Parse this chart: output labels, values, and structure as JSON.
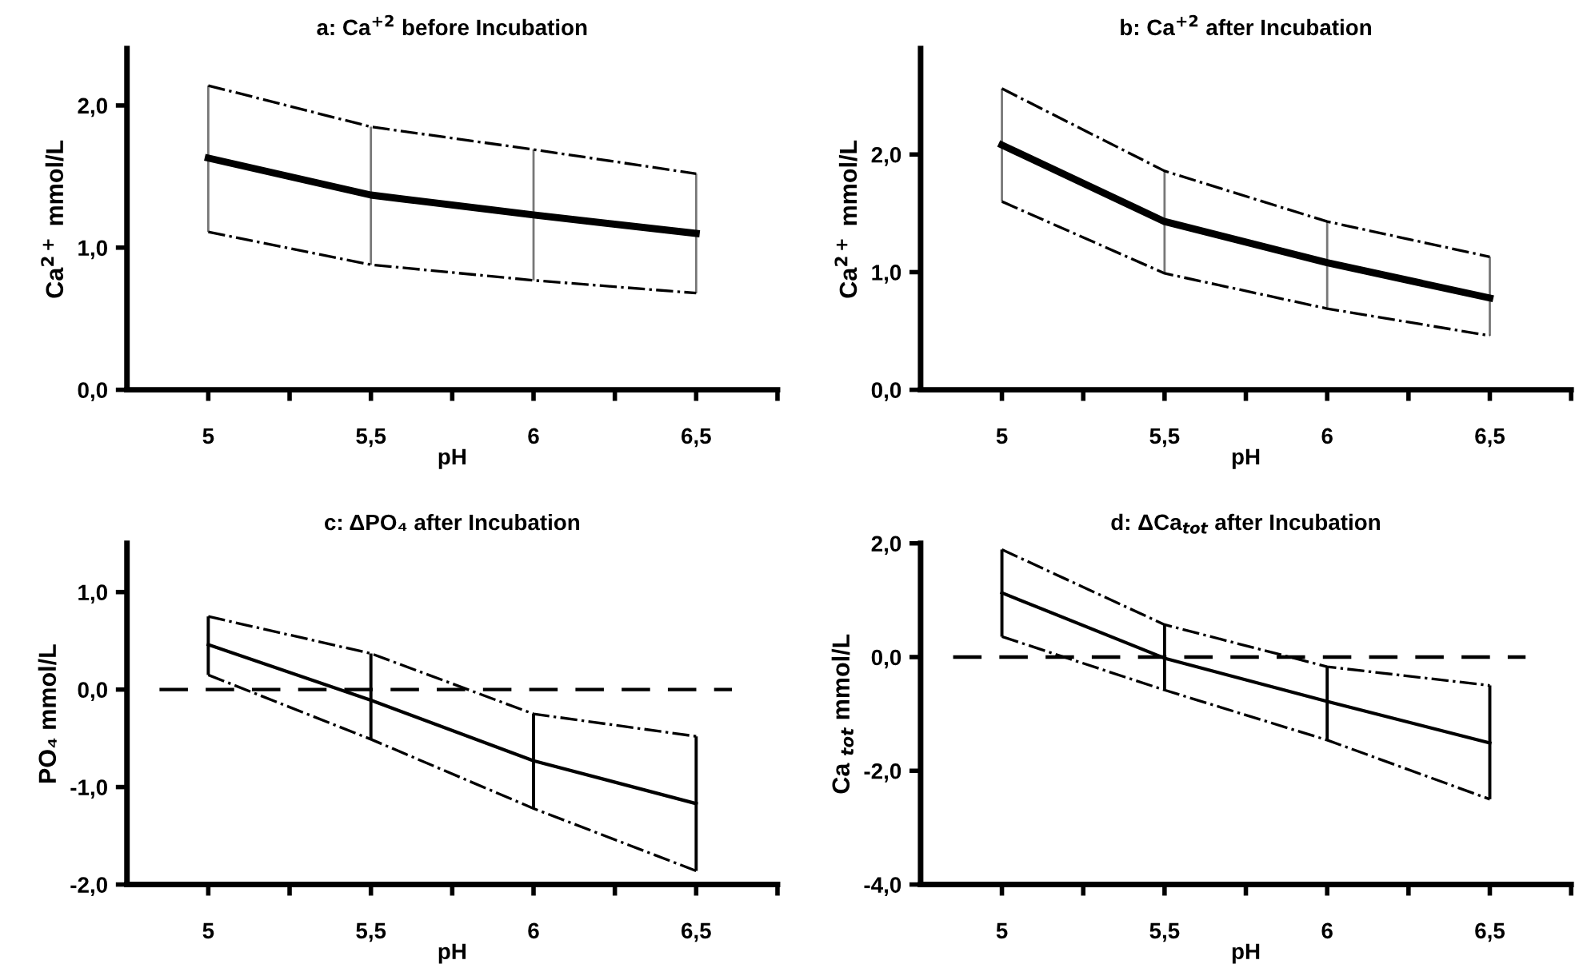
{
  "chart_data": [
    {
      "type": "line",
      "title": "a: Ca$^{+2}$ before Incubation",
      "xlabel": "pH",
      "ylabel": "Ca$^{2+}$ mmol/L",
      "x": [
        5,
        5.5,
        6,
        6.5
      ],
      "series": [
        {
          "color": "#000000",
          "values": [
            1.63,
            1.37,
            1.23,
            1.1
          ],
          "errors": [
            [
              1.11,
              2.14
            ],
            [
              0.88,
              1.85
            ],
            [
              0.77,
              1.69
            ],
            [
              0.68,
              1.52
            ]
          ]
        },
        {
          "color": "#000000",
          "values": [
            2.14,
            1.85,
            1.69,
            1.52
          ],
          "line_style": "dashdot"
        },
        {
          "color": "#000000",
          "values": [
            1.11,
            0.88,
            0.77,
            0.68
          ],
          "line_style": "dashdot"
        }
      ],
      "xlim": [
        4.75,
        6.75
      ],
      "xticks": [
        {
          "value": 5,
          "label": "5"
        },
        {
          "value": 5.25,
          "label": null
        },
        {
          "value": 5.5,
          "label": "5,5"
        },
        {
          "value": 5.75,
          "label": null
        },
        {
          "value": 6,
          "label": "6"
        },
        {
          "value": 6.25,
          "label": null
        },
        {
          "value": 6.5,
          "label": "6,5"
        },
        {
          "value": 6.75,
          "label": null
        }
      ],
      "ylim": [
        0,
        2.4
      ],
      "yticks": [
        {
          "value": 0,
          "label": "0,0"
        },
        {
          "value": 1,
          "label": "1,0"
        },
        {
          "value": 2,
          "label": "2,0"
        }
      ],
      "grid": false,
      "legend": false,
      "marker": "none",
      "line_style": "solid"
    },
    {
      "type": "line",
      "title": "b: Ca$^{+2}$ after Incubation",
      "xlabel": "pH",
      "ylabel": "Ca$^{2+}$ mmol/L",
      "x": [
        5,
        5.5,
        6,
        6.5
      ],
      "series": [
        {
          "color": "#000000",
          "values": [
            2.08,
            1.43,
            1.08,
            0.78
          ],
          "errors": [
            [
              1.6,
              2.56
            ],
            [
              0.99,
              1.86
            ],
            [
              0.69,
              1.43
            ],
            [
              0.46,
              1.13
            ]
          ]
        },
        {
          "color": "#000000",
          "values": [
            2.56,
            1.86,
            1.43,
            1.13
          ],
          "line_style": "dashdot"
        },
        {
          "color": "#000000",
          "values": [
            1.6,
            0.99,
            0.69,
            0.46
          ],
          "line_style": "dashdot"
        }
      ],
      "xlim": [
        4.75,
        6.75
      ],
      "xticks": [
        {
          "value": 5,
          "label": "5"
        },
        {
          "value": 5.25,
          "label": null
        },
        {
          "value": 5.5,
          "label": "5,5"
        },
        {
          "value": 5.75,
          "label": null
        },
        {
          "value": 6,
          "label": "6"
        },
        {
          "value": 6.25,
          "label": null
        },
        {
          "value": 6.5,
          "label": "6,5"
        },
        {
          "value": 6.75,
          "label": null
        }
      ],
      "ylim": [
        0,
        2.9
      ],
      "yticks": [
        {
          "value": 0,
          "label": "0,0"
        },
        {
          "value": 1,
          "label": "1,0"
        },
        {
          "value": 2,
          "label": "2,0"
        }
      ],
      "grid": false,
      "legend": false,
      "marker": "none",
      "line_style": "solid"
    },
    {
      "type": "line",
      "title": "c: ΔPO₄ after Incubation",
      "xlabel": "pH",
      "ylabel": "PO₄ mmol/L",
      "x": [
        5,
        5.5,
        6,
        6.5
      ],
      "series": [
        {
          "color": "#000000",
          "values": [
            0.46,
            -0.11,
            -0.73,
            -1.17
          ],
          "errors": [
            [
              0.15,
              0.75
            ],
            [
              -0.51,
              0.37
            ],
            [
              -1.22,
              -0.25
            ],
            [
              -1.86,
              -0.48
            ]
          ]
        },
        {
          "color": "#000000",
          "values": [
            0.75,
            0.37,
            -0.25,
            -0.48
          ],
          "line_style": "dashdot"
        },
        {
          "color": "#000000",
          "values": [
            0.15,
            -0.51,
            -1.22,
            -1.86
          ],
          "line_style": "dashdot"
        }
      ],
      "xlim": [
        4.75,
        6.75
      ],
      "xticks": [
        {
          "value": 5,
          "label": "5"
        },
        {
          "value": 5.25,
          "label": null
        },
        {
          "value": 5.5,
          "label": "5,5"
        },
        {
          "value": 5.75,
          "label": null
        },
        {
          "value": 6,
          "label": "6"
        },
        {
          "value": 6.25,
          "label": null
        },
        {
          "value": 6.5,
          "label": "6,5"
        },
        {
          "value": 6.75,
          "label": null
        }
      ],
      "ylim": [
        -2,
        1.5
      ],
      "yticks": [
        {
          "value": -2,
          "label": "-2,0"
        },
        {
          "value": -1,
          "label": "-1,0"
        },
        {
          "value": 0,
          "label": "0,0"
        },
        {
          "value": 1,
          "label": "1,0"
        }
      ],
      "grid": false,
      "legend": false,
      "marker": "none",
      "line_style": "solid",
      "ref_lines": [
        {
          "axis": "y",
          "value": 0,
          "line_style": "dashed",
          "color": "#000000"
        }
      ]
    },
    {
      "type": "line",
      "title": "d: ΔCa$_{tot}$ after Incubation",
      "xlabel": "pH",
      "ylabel": "Ca $_{tot}$ mmol/L",
      "x": [
        5,
        5.5,
        6,
        6.5
      ],
      "series": [
        {
          "color": "#000000",
          "values": [
            1.13,
            -0.02,
            -0.78,
            -1.51
          ],
          "errors": [
            [
              0.36,
              1.89
            ],
            [
              -0.58,
              0.57
            ],
            [
              -1.46,
              -0.17
            ],
            [
              -2.5,
              -0.5
            ]
          ]
        },
        {
          "color": "#000000",
          "values": [
            1.89,
            0.57,
            -0.17,
            -0.5
          ],
          "line_style": "dashdot"
        },
        {
          "color": "#000000",
          "values": [
            0.36,
            -0.58,
            -1.46,
            -2.5
          ],
          "line_style": "dashdot"
        }
      ],
      "xlim": [
        4.75,
        6.75
      ],
      "xticks": [
        {
          "value": 5,
          "label": "5"
        },
        {
          "value": 5.25,
          "label": null
        },
        {
          "value": 5.5,
          "label": "5,5"
        },
        {
          "value": 5.75,
          "label": null
        },
        {
          "value": 6,
          "label": "6"
        },
        {
          "value": 6.25,
          "label": null
        },
        {
          "value": 6.5,
          "label": "6,5"
        },
        {
          "value": 6.75,
          "label": null
        }
      ],
      "ylim": [
        -4,
        2
      ],
      "yticks": [
        {
          "value": -4,
          "label": "-4,0"
        },
        {
          "value": -2,
          "label": "-2,0"
        },
        {
          "value": 0,
          "label": "0,0"
        },
        {
          "value": 2,
          "label": "2,0"
        }
      ],
      "grid": false,
      "legend": false,
      "marker": "none",
      "line_style": "solid",
      "ref_lines": [
        {
          "axis": "y",
          "value": 0,
          "line_style": "dashed",
          "color": "#000000"
        }
      ]
    }
  ]
}
